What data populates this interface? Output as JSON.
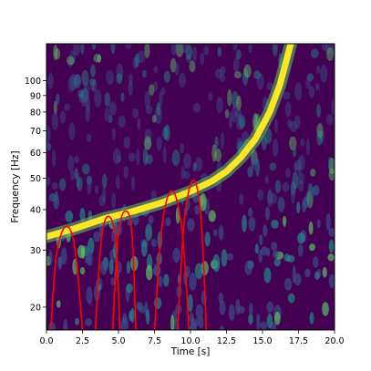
{
  "chart_data": {
    "type": "heatmap",
    "title": "",
    "xlabel": "Time [s]",
    "ylabel": "Frequency [Hz]",
    "xlim": [
      0,
      20
    ],
    "ylim": [
      17,
      130
    ],
    "yscale": "log",
    "grid": false,
    "legend": "none",
    "x_ticks": [
      0.0,
      2.5,
      5.0,
      7.5,
      10.0,
      12.5,
      15.0,
      17.5,
      20.0
    ],
    "x_tick_labels": [
      "0.0",
      "2.5",
      "5.0",
      "7.5",
      "10.0",
      "12.5",
      "15.0",
      "17.5",
      "20.0"
    ],
    "y_ticks": [
      20,
      30,
      40,
      50,
      60,
      70,
      80,
      90,
      100
    ],
    "y_tick_labels": [
      "20",
      "30",
      "40",
      "50",
      "60",
      "70",
      "80",
      "90",
      "100"
    ],
    "colormap": [
      "#440154",
      "#3b528b",
      "#21918c",
      "#5ec962",
      "#fde725"
    ],
    "chirp_track": {
      "color": "#fde725",
      "points": [
        {
          "t": 0.0,
          "f": 33.0
        },
        {
          "t": 2.0,
          "f": 35.0
        },
        {
          "t": 4.0,
          "f": 37.5
        },
        {
          "t": 6.0,
          "f": 39.5
        },
        {
          "t": 8.0,
          "f": 42.0
        },
        {
          "t": 10.0,
          "f": 45.5
        },
        {
          "t": 11.5,
          "f": 49.0
        },
        {
          "t": 12.5,
          "f": 52.5
        },
        {
          "t": 13.5,
          "f": 58.0
        },
        {
          "t": 14.5,
          "f": 66.0
        },
        {
          "t": 15.5,
          "f": 80.0
        },
        {
          "t": 16.2,
          "f": 97.0
        },
        {
          "t": 16.6,
          "f": 113.0
        },
        {
          "t": 17.0,
          "f": 132.0
        }
      ]
    },
    "series": [
      {
        "color": "#ff0000",
        "x": [
          0.3,
          0.6,
          1.0,
          1.4,
          1.8,
          2.1,
          2.5
        ],
        "y": [
          17.0,
          28.0,
          34.0,
          36.0,
          34.0,
          28.0,
          17.0
        ]
      },
      {
        "color": "#ff0000",
        "x": [
          3.4,
          3.7,
          4.0,
          4.3,
          4.6,
          4.9,
          5.1
        ],
        "y": [
          17.0,
          30.0,
          37.0,
          38.5,
          37.0,
          30.0,
          17.0
        ]
      },
      {
        "color": "#ff0000",
        "x": [
          4.6,
          4.9,
          5.2,
          5.5,
          5.8,
          6.0,
          6.2
        ],
        "y": [
          17.0,
          32.0,
          38.5,
          40.0,
          38.5,
          32.0,
          17.0
        ]
      },
      {
        "color": "#ff0000",
        "x": [
          7.5,
          7.9,
          8.3,
          8.7,
          9.1,
          9.5,
          9.9
        ],
        "y": [
          17.0,
          33.0,
          43.0,
          46.5,
          43.0,
          33.0,
          17.0
        ]
      },
      {
        "color": "#ff0000",
        "x": [
          9.1,
          9.5,
          9.9,
          10.2,
          10.5,
          10.8,
          11.1
        ],
        "y": [
          17.0,
          36.0,
          47.0,
          50.0,
          47.0,
          36.0,
          17.0
        ]
      }
    ]
  }
}
